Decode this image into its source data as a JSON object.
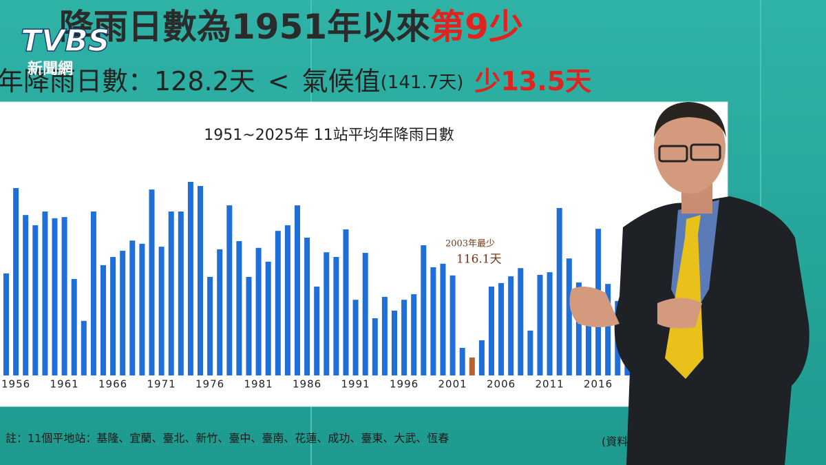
{
  "header": {
    "line1": "降雨日數為1951年以來",
    "line1_highlight": "第9少",
    "line2": "年降雨日數：128.2天",
    "compare": "<",
    "climate": "氣候值",
    "climate_value": "(141.7天)",
    "diff": "少13.5天"
  },
  "logo": {
    "brand": "TVBS",
    "sub": "新聞網"
  },
  "footnote": "註：11個平地站：基隆、宜蘭、臺北、新竹、臺中、臺南、花蓮、成功、臺東、大武、恆春",
  "source": "(資料",
  "chart_data": {
    "type": "bar",
    "title": "1951~2025年  11站平均年降雨日數",
    "categories": [
      null,
      "1956",
      null,
      null,
      null,
      null,
      "1961",
      null,
      null,
      null,
      null,
      "1966",
      null,
      null,
      null,
      null,
      "1971",
      null,
      null,
      null,
      null,
      "1976",
      null,
      null,
      null,
      null,
      "1981",
      null,
      null,
      null,
      null,
      "1986",
      null,
      null,
      null,
      null,
      "1991",
      null,
      null,
      null,
      null,
      "1996",
      null,
      null,
      null,
      null,
      "2001",
      null,
      null,
      null,
      null,
      "2006",
      null,
      null,
      null,
      null,
      "2011",
      null,
      null,
      null,
      null,
      "2016",
      null,
      null,
      null
    ],
    "values": [
      144.8,
      173.9,
      164.7,
      161.2,
      165.9,
      163.6,
      164.0,
      142.9,
      128.6,
      165.9,
      147.6,
      150.4,
      152.5,
      156.0,
      154.9,
      173.4,
      153.9,
      165.9,
      165.9,
      176.0,
      174.6,
      143.6,
      153.0,
      168.0,
      155.8,
      143.6,
      153.5,
      148.8,
      159.3,
      161.2,
      168.0,
      157.0,
      140.3,
      152.0,
      150.4,
      159.8,
      135.8,
      151.8,
      129.5,
      136.8,
      132.1,
      135.8,
      137.7,
      154.4,
      146.9,
      148.1,
      144.1,
      119.4,
      116.1,
      122.0,
      140.3,
      141.5,
      143.8,
      146.6,
      125.3,
      144.3,
      145.2,
      167.1,
      149.9,
      141.7,
      127.6,
      160.0,
      141.2,
      135.4,
      147.8
    ],
    "value_labels": [
      null,
      null,
      null,
      null,
      null,
      null,
      null,
      null,
      null,
      null,
      null,
      null,
      null,
      null,
      null,
      null,
      null,
      null,
      null,
      null,
      null,
      null,
      null,
      null,
      null,
      null,
      null,
      null,
      null,
      null,
      null,
      null,
      null,
      null,
      null,
      null,
      null,
      null,
      null,
      null,
      null,
      null,
      null,
      null,
      null,
      null,
      null,
      null,
      "116.1天",
      null,
      null,
      null,
      null,
      null,
      null,
      null,
      null,
      null,
      null,
      null,
      null,
      null,
      null,
      null,
      null
    ],
    "annotation": "2003年最少",
    "color": "#1f6fd8",
    "highlight_color": "#b5622e",
    "ylim": [
      110,
      180
    ]
  }
}
